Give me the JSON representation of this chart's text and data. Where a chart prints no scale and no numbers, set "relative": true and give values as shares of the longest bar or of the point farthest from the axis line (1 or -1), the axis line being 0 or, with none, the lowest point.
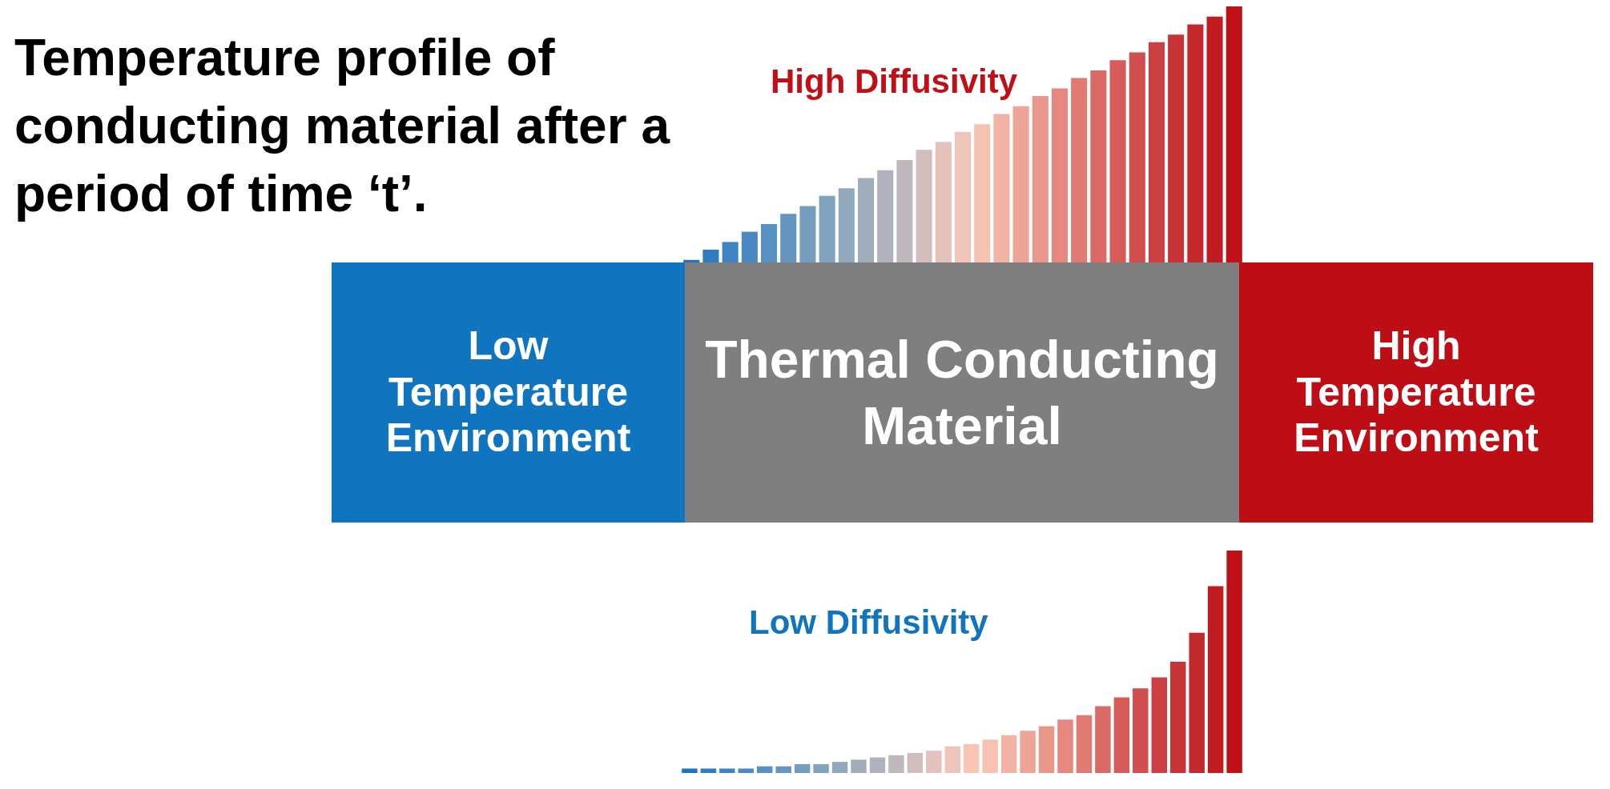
{
  "chart_data": [
    {
      "type": "other",
      "title": "Temperature profile of conducting material after a period of time ‘t’.",
      "categories": [
        "Low Temperature Environment",
        "Thermal Conducting Material",
        "High Temperature Environment"
      ],
      "colors": [
        "#1174be",
        "#7f7f7f",
        "#bd0e16"
      ]
    },
    {
      "type": "bar",
      "title": "High Diffusivity",
      "relative": true,
      "categories": [
        null,
        null,
        null,
        null,
        null,
        null,
        null,
        null,
        null,
        null,
        null,
        null,
        null,
        null,
        null,
        null,
        null,
        null,
        null,
        null,
        null,
        null,
        null,
        null,
        null,
        null,
        null,
        null,
        null
      ],
      "values": [
        0.01,
        0.05,
        0.08,
        0.12,
        0.15,
        0.19,
        0.22,
        0.26,
        0.29,
        0.33,
        0.36,
        0.4,
        0.44,
        0.47,
        0.51,
        0.54,
        0.58,
        0.61,
        0.65,
        0.68,
        0.72,
        0.75,
        0.79,
        0.82,
        0.86,
        0.89,
        0.93,
        0.96,
        1
      ],
      "colors": [
        "#1f74bf",
        "#2f7cc0",
        "#3f84c2",
        "#4a89c2",
        "#5890c2",
        "#6696c0",
        "#749dbe",
        "#82a3bd",
        "#90a9bc",
        "#a0aebc",
        "#b0b3bd",
        "#bfb8bd",
        "#d1bdbb",
        "#e2c2bb",
        "#efc5ba",
        "#f6c3b3",
        "#f3b3a4",
        "#eea597",
        "#ea978b",
        "#e6887f",
        "#e07a72",
        "#da6a65",
        "#d55c59",
        "#d04e4d",
        "#cb4042",
        "#c73437",
        "#c3282d",
        "#c11c22",
        "#bf1018"
      ]
    },
    {
      "type": "bar",
      "title": "Low Diffusivity",
      "relative": true,
      "categories": [
        null,
        null,
        null,
        null,
        null,
        null,
        null,
        null,
        null,
        null,
        null,
        null,
        null,
        null,
        null,
        null,
        null,
        null,
        null,
        null,
        null,
        null,
        null,
        null,
        null,
        null,
        null,
        null,
        null,
        null
      ],
      "values": [
        0.02,
        0.02,
        0.02,
        0.02,
        0.03,
        0.03,
        0.04,
        0.04,
        0.05,
        0.06,
        0.07,
        0.08,
        0.09,
        0.1,
        0.12,
        0.13,
        0.15,
        0.17,
        0.19,
        0.21,
        0.24,
        0.26,
        0.3,
        0.34,
        0.38,
        0.43,
        0.5,
        0.63,
        0.84,
        1
      ],
      "colors": [
        "#1f74bf",
        "#2f7cc0",
        "#3f84c2",
        "#4a89c2",
        "#5890c2",
        "#6696c0",
        "#749dbe",
        "#82a3bd",
        "#90a9bc",
        "#a0aebc",
        "#b0b3bd",
        "#bfb8bd",
        "#d1bdbb",
        "#e2c2bb",
        "#efc5ba",
        "#f9c6b6",
        "#f6c3b3",
        "#f3b3a4",
        "#eea597",
        "#ea978b",
        "#e6887f",
        "#e07a72",
        "#da6a65",
        "#d55c59",
        "#d04e4d",
        "#cb4042",
        "#c73437",
        "#c3282d",
        "#c11c22",
        "#bf1018"
      ]
    }
  ]
}
